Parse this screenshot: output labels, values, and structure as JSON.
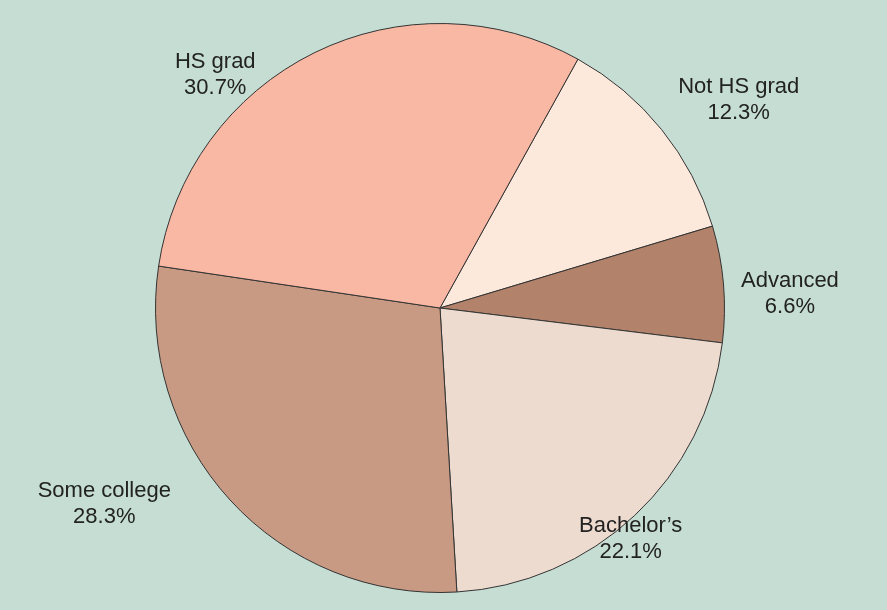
{
  "chart_data": {
    "type": "pie",
    "categories": [
      "Not HS grad",
      "Advanced",
      "Bachelor’s",
      "Some college",
      "HS grad"
    ],
    "values": [
      12.3,
      6.6,
      22.1,
      28.3,
      30.7
    ],
    "value_labels": [
      "12.3%",
      "6.6%",
      "22.1%",
      "28.3%",
      "30.7%"
    ],
    "colors": [
      "#fde8dc",
      "#b2826a",
      "#ecdbce",
      "#c89a83",
      "#f9b8a3"
    ],
    "data_labels": true
  }
}
